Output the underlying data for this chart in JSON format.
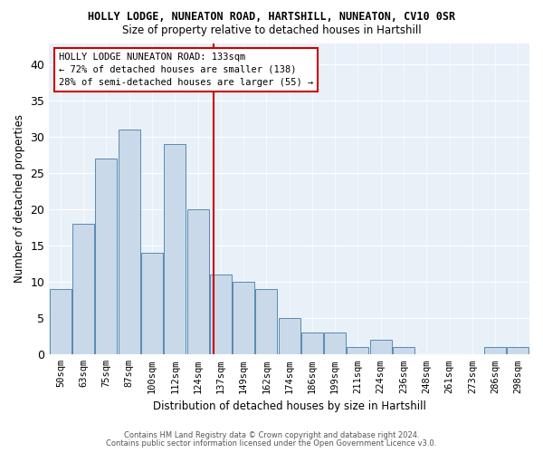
{
  "title": "HOLLY LODGE, NUNEATON ROAD, HARTSHILL, NUNEATON, CV10 0SR",
  "subtitle": "Size of property relative to detached houses in Hartshill",
  "xlabel": "Distribution of detached houses by size in Hartshill",
  "ylabel": "Number of detached properties",
  "categories": [
    "50sqm",
    "63sqm",
    "75sqm",
    "87sqm",
    "100sqm",
    "112sqm",
    "124sqm",
    "137sqm",
    "149sqm",
    "162sqm",
    "174sqm",
    "186sqm",
    "199sqm",
    "211sqm",
    "224sqm",
    "236sqm",
    "248sqm",
    "261sqm",
    "273sqm",
    "286sqm",
    "298sqm"
  ],
  "values": [
    9,
    18,
    27,
    31,
    14,
    29,
    20,
    11,
    10,
    9,
    5,
    3,
    3,
    1,
    2,
    1,
    0,
    0,
    0,
    1,
    1
  ],
  "bar_color": "#c9d9ea",
  "bar_edge_color": "#5a8ab0",
  "vline_x": 6,
  "vline_color": "#cc0000",
  "annotation_text": "HOLLY LODGE NUNEATON ROAD: 133sqm\n← 72% of detached houses are smaller (138)\n28% of semi-detached houses are larger (55) →",
  "annotation_box_color": "#cc0000",
  "ylim": [
    0,
    43
  ],
  "yticks": [
    0,
    5,
    10,
    15,
    20,
    25,
    30,
    35,
    40
  ],
  "bg_color": "#e8f0f8",
  "footer1": "Contains HM Land Registry data © Crown copyright and database right 2024.",
  "footer2": "Contains public sector information licensed under the Open Government Licence v3.0."
}
